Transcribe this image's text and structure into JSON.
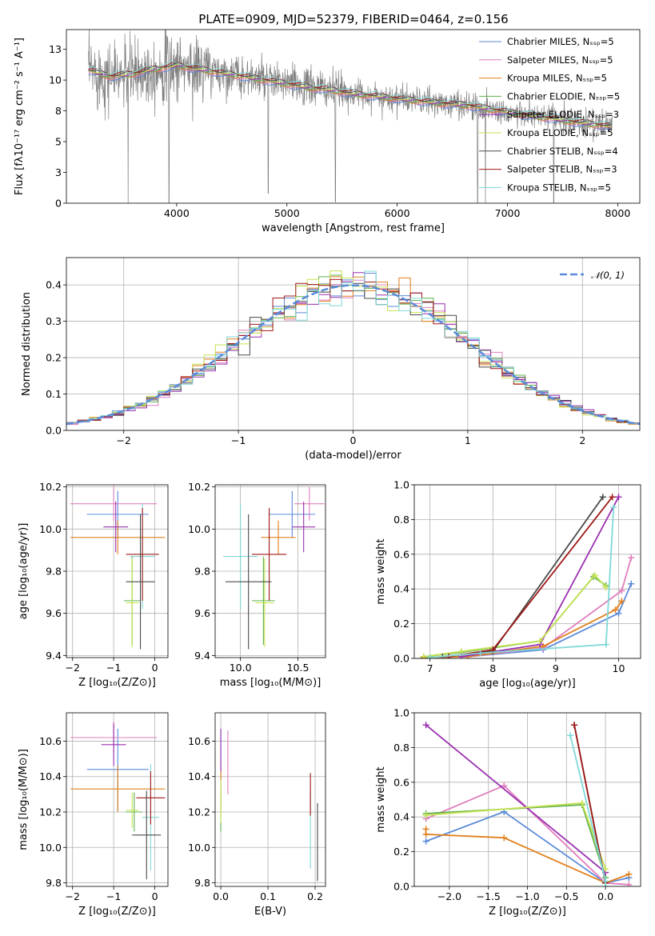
{
  "figure": {
    "title": "PLATE=0909, MJD=52379, FIBERID=0464, z=0.156"
  },
  "chart_data": [
    {
      "id": "spectrum",
      "type": "line",
      "title": "PLATE=0909, MJD=52379, FIBERID=0464, z=0.156",
      "xlabel": "wavelength [Angstrom, rest frame]",
      "ylabel": "Flux [fλ10⁻¹⁷ erg cm⁻² s⁻¹ A⁻¹]",
      "xlim": [
        3000,
        8200
      ],
      "ylim": [
        0,
        14.1
      ],
      "xticks": [
        4000,
        5000,
        6000,
        7000,
        8000
      ],
      "yticks": [
        0.0,
        2.5,
        5.0,
        7.5,
        10.0,
        12.5
      ],
      "grid": false,
      "legend": "upper-right",
      "data_color": "#808080",
      "continuum": [
        [
          3200,
          10.8
        ],
        [
          3400,
          10.3
        ],
        [
          3600,
          10.5
        ],
        [
          3800,
          10.9
        ],
        [
          4000,
          11.2
        ],
        [
          4200,
          10.9
        ],
        [
          4400,
          10.6
        ],
        [
          4600,
          10.3
        ],
        [
          4800,
          10.0
        ],
        [
          5000,
          9.7
        ],
        [
          5200,
          9.4
        ],
        [
          5400,
          9.2
        ],
        [
          5600,
          8.9
        ],
        [
          5800,
          8.7
        ],
        [
          6000,
          8.5
        ],
        [
          6200,
          8.3
        ],
        [
          6400,
          8.1
        ],
        [
          6600,
          8.0
        ],
        [
          6800,
          7.7
        ],
        [
          7000,
          7.4
        ],
        [
          7200,
          7.1
        ],
        [
          7400,
          6.9
        ],
        [
          7600,
          6.6
        ],
        [
          7800,
          6.4
        ],
        [
          7950,
          6.2
        ]
      ],
      "absorption_features": [
        [
          3560,
          0.0
        ],
        [
          3930,
          0.0
        ],
        [
          4830,
          0.8
        ],
        [
          5440,
          0.1
        ],
        [
          6730,
          0.0
        ],
        [
          6800,
          0.0
        ],
        [
          7420,
          0.0
        ]
      ],
      "series": [
        {
          "name": "Chabrier MILES, Nₛₛₚ=5",
          "color": "#5b8ad9"
        },
        {
          "name": "Salpeter MILES, Nₛₛₚ=5",
          "color": "#e07fbd"
        },
        {
          "name": "Kroupa MILES, Nₛₛₚ=5",
          "color": "#e0801c"
        },
        {
          "name": "Chabrier ELODIE, Nₛₛₚ=5",
          "color": "#5fb04d"
        },
        {
          "name": "Salpeter ELODIE, Nₛₛₚ=3",
          "color": "#9a2fb0"
        },
        {
          "name": "Kroupa ELODIE, Nₛₛₚ=5",
          "color": "#c6e352"
        },
        {
          "name": "Chabrier STELIB, Nₛₛₚ=4",
          "color": "#4a4a4a"
        },
        {
          "name": "Salpeter STELIB, Nₛₛₚ=3",
          "color": "#a01818"
        },
        {
          "name": "Kroupa STELIB, Nₛₛₚ=5",
          "color": "#7fd8d8"
        }
      ]
    },
    {
      "id": "residuals",
      "type": "line",
      "xlabel": "(data-model)/error",
      "ylabel": "Normed distribution",
      "xlim": [
        -2.5,
        2.5
      ],
      "ylim": [
        0,
        0.475
      ],
      "xticks": [
        -2,
        -1,
        0,
        1,
        2
      ],
      "yticks": [
        0.0,
        0.1,
        0.2,
        0.3,
        0.4
      ],
      "grid": true,
      "legend": "upper-right",
      "reference": {
        "name": "𝒩(0, 1)",
        "color": "#5b8ad9",
        "mu": 0,
        "sigma": 1
      },
      "histograms": [
        {
          "color": "#5b8ad9",
          "shift": 0.0
        },
        {
          "color": "#e07fbd",
          "shift": 0.03
        },
        {
          "color": "#e0801c",
          "shift": -0.02
        },
        {
          "color": "#5fb04d",
          "shift": 0.01
        },
        {
          "color": "#9a2fb0",
          "shift": 0.04
        },
        {
          "color": "#c6e352",
          "shift": -0.03
        },
        {
          "color": "#4a4a4a",
          "shift": 0.02
        },
        {
          "color": "#a01818",
          "shift": -0.01
        },
        {
          "color": "#7fd8d8",
          "shift": 0.0
        }
      ]
    },
    {
      "id": "age-vs-z",
      "type": "scatter",
      "xlabel": "Z [log₁₀(Z/Z⊙)]",
      "ylabel": "age  [log₁₀(age/yr)]",
      "xlim": [
        -2.15,
        0.32
      ],
      "ylim": [
        9.39,
        10.21
      ],
      "xticks": [
        -2,
        -1,
        0
      ],
      "yticks": [
        9.4,
        9.6,
        9.8,
        10.0,
        10.2
      ],
      "grid": true,
      "points": [
        {
          "color": "#5b8ad9",
          "x": -0.9,
          "xerr": 0.75,
          "y": 10.07,
          "yerr": 0.11
        },
        {
          "color": "#e07fbd",
          "x": -1.0,
          "xerr": 1.05,
          "y": 10.12,
          "yerr": 0.08
        },
        {
          "color": "#e0801c",
          "x": -0.9,
          "xerr": 1.15,
          "y": 9.96,
          "yerr": 0.08
        },
        {
          "color": "#9a2fb0",
          "x": -0.95,
          "xerr": 0.3,
          "y": 10.01,
          "yerr": 0.12
        },
        {
          "color": "#5fb04d",
          "x": -0.55,
          "xerr": 0.2,
          "y": 9.66,
          "yerr": 0.21
        },
        {
          "color": "#c6e352",
          "x": -0.55,
          "xerr": 0.15,
          "y": 9.65,
          "yerr": 0.21
        },
        {
          "color": "#7fd8d8",
          "x": -0.3,
          "xerr": 0.3,
          "y": 9.87,
          "yerr": 0.25
        },
        {
          "color": "#a01818",
          "x": -0.3,
          "xerr": 0.4,
          "y": 9.88,
          "yerr": 0.22
        },
        {
          "color": "#4a4a4a",
          "x": -0.35,
          "xerr": 0.35,
          "y": 9.75,
          "yerr": 0.32
        }
      ]
    },
    {
      "id": "age-vs-mass",
      "type": "scatter",
      "xlabel": "mass [log₁₀(M/M⊙)]",
      "ylabel": "",
      "xlim": [
        9.78,
        10.74
      ],
      "ylim": [
        9.39,
        10.21
      ],
      "xticks": [
        10.0,
        10.5
      ],
      "yticks": [
        9.4,
        9.6,
        9.8,
        10.0,
        10.2
      ],
      "grid": true,
      "points": [
        {
          "color": "#5b8ad9",
          "x": 10.45,
          "xerr": 0.2,
          "y": 10.07,
          "yerr": 0.11
        },
        {
          "color": "#e07fbd",
          "x": 10.6,
          "xerr": 0.13,
          "y": 10.12,
          "yerr": 0.08
        },
        {
          "color": "#e0801c",
          "x": 10.33,
          "xerr": 0.15,
          "y": 9.96,
          "yerr": 0.08
        },
        {
          "color": "#9a2fb0",
          "x": 10.55,
          "xerr": 0.1,
          "y": 10.01,
          "yerr": 0.12
        },
        {
          "color": "#5fb04d",
          "x": 10.2,
          "xerr": 0.1,
          "y": 9.66,
          "yerr": 0.21
        },
        {
          "color": "#c6e352",
          "x": 10.21,
          "xerr": 0.08,
          "y": 9.65,
          "yerr": 0.21
        },
        {
          "color": "#7fd8d8",
          "x": 10.0,
          "xerr": 0.15,
          "y": 9.87,
          "yerr": 0.25
        },
        {
          "color": "#a01818",
          "x": 10.25,
          "xerr": 0.15,
          "y": 9.88,
          "yerr": 0.22
        },
        {
          "color": "#4a4a4a",
          "x": 10.07,
          "xerr": 0.2,
          "y": 9.75,
          "yerr": 0.32
        }
      ]
    },
    {
      "id": "mass-weight-vs-age",
      "type": "line",
      "xlabel": "age  [log₁₀(age/yr)]",
      "ylabel": "mass weight",
      "xlim": [
        6.75,
        10.35
      ],
      "ylim": [
        0,
        1.0
      ],
      "xticks": [
        7,
        8,
        9,
        10
      ],
      "yticks": [
        0.0,
        0.2,
        0.4,
        0.6,
        0.8,
        1.0
      ],
      "grid": true,
      "series": [
        {
          "color": "#5b8ad9",
          "x": [
            6.9,
            7.6,
            8.8,
            10.0,
            10.2
          ],
          "y": [
            0.005,
            0.01,
            0.05,
            0.26,
            0.43
          ]
        },
        {
          "color": "#e07fbd",
          "x": [
            6.9,
            7.6,
            8.8,
            10.05,
            10.2
          ],
          "y": [
            0.005,
            0.01,
            0.06,
            0.39,
            0.58
          ]
        },
        {
          "color": "#e0801c",
          "x": [
            6.9,
            7.6,
            8.8,
            9.95,
            10.05
          ],
          "y": [
            0.005,
            0.01,
            0.07,
            0.28,
            0.33
          ]
        },
        {
          "color": "#5fb04d",
          "x": [
            6.9,
            7.5,
            8.75,
            9.6,
            9.8
          ],
          "y": [
            0.01,
            0.035,
            0.1,
            0.47,
            0.42
          ]
        },
        {
          "color": "#9a2fb0",
          "x": [
            7.5,
            8.75,
            10.0
          ],
          "y": [
            0.01,
            0.08,
            0.93
          ]
        },
        {
          "color": "#c6e352",
          "x": [
            6.9,
            7.5,
            8.75,
            9.62,
            9.8
          ],
          "y": [
            0.01,
            0.04,
            0.1,
            0.48,
            0.41
          ]
        },
        {
          "color": "#4a4a4a",
          "x": [
            7.2,
            8.0,
            9.75
          ],
          "y": [
            0.01,
            0.04,
            0.93
          ]
        },
        {
          "color": "#a01818",
          "x": [
            7.3,
            8.0,
            9.9
          ],
          "y": [
            0.01,
            0.05,
            0.93
          ]
        },
        {
          "color": "#7fd8d8",
          "x": [
            7.0,
            7.8,
            9.8,
            9.92
          ],
          "y": [
            0.005,
            0.03,
            0.08,
            0.87
          ]
        }
      ]
    },
    {
      "id": "mass-vs-z",
      "type": "scatter",
      "xlabel": "Z [log₁₀(Z/Z⊙)]",
      "ylabel": "mass [log₁₀(M/M⊙)]",
      "xlim": [
        -2.15,
        0.32
      ],
      "ylim": [
        9.78,
        10.76
      ],
      "xticks": [
        -2,
        -1,
        0
      ],
      "yticks": [
        9.8,
        10.0,
        10.2,
        10.4,
        10.6
      ],
      "grid": true,
      "points": [
        {
          "color": "#5b8ad9",
          "x": -0.9,
          "xerr": 0.75,
          "y": 10.44,
          "yerr": 0.23
        },
        {
          "color": "#e07fbd",
          "x": -1.0,
          "xerr": 1.05,
          "y": 10.62,
          "yerr": 0.09
        },
        {
          "color": "#e0801c",
          "x": -0.9,
          "xerr": 1.15,
          "y": 10.33,
          "yerr": 0.13
        },
        {
          "color": "#9a2fb0",
          "x": -1.0,
          "xerr": 0.3,
          "y": 10.58,
          "yerr": 0.12
        },
        {
          "color": "#5fb04d",
          "x": -0.5,
          "xerr": 0.2,
          "y": 10.2,
          "yerr": 0.11
        },
        {
          "color": "#c6e352",
          "x": -0.55,
          "xerr": 0.15,
          "y": 10.21,
          "yerr": 0.1
        },
        {
          "color": "#7fd8d8",
          "x": -0.1,
          "xerr": 0.2,
          "y": 10.17,
          "yerr": 0.3
        },
        {
          "color": "#a01818",
          "x": -0.1,
          "xerr": 0.35,
          "y": 10.28,
          "yerr": 0.15
        },
        {
          "color": "#4a4a4a",
          "x": -0.2,
          "xerr": 0.35,
          "y": 10.07,
          "yerr": 0.25
        }
      ]
    },
    {
      "id": "mass-vs-ebv",
      "type": "scatter",
      "xlabel": "E(B-V)",
      "ylabel": "",
      "xlim": [
        -0.012,
        0.222
      ],
      "ylim": [
        9.78,
        10.76
      ],
      "xticks": [
        0.0,
        0.1,
        0.2
      ],
      "yticks": [
        9.8,
        10.0,
        10.2,
        10.4,
        10.6
      ],
      "grid": true,
      "points": [
        {
          "color": "#5b8ad9",
          "x": 0.0,
          "xerr": 0.0,
          "y": 10.44,
          "yerr": 0.23
        },
        {
          "color": "#e07fbd",
          "x": 0.015,
          "xerr": 0.0,
          "y": 10.48,
          "yerr": 0.18
        },
        {
          "color": "#e0801c",
          "x": 0.0,
          "xerr": 0.0,
          "y": 10.33,
          "yerr": 0.13
        },
        {
          "color": "#9a2fb0",
          "x": 0.0,
          "xerr": 0.0,
          "y": 10.55,
          "yerr": 0.12
        },
        {
          "color": "#5fb04d",
          "x": 0.0,
          "xerr": 0.0,
          "y": 10.2,
          "yerr": 0.11
        },
        {
          "color": "#c6e352",
          "x": 0.0,
          "xerr": 0.0,
          "y": 10.26,
          "yerr": 0.12
        },
        {
          "color": "#7fd8d8",
          "x": 0.19,
          "xerr": 0.0,
          "y": 10.1,
          "yerr": 0.22
        },
        {
          "color": "#a01818",
          "x": 0.19,
          "xerr": 0.0,
          "y": 10.3,
          "yerr": 0.12
        },
        {
          "color": "#4a4a4a",
          "x": 0.205,
          "xerr": 0.0,
          "y": 10.03,
          "yerr": 0.22
        }
      ]
    },
    {
      "id": "mass-weight-vs-z",
      "type": "line",
      "xlabel": "Z [log₁₀(Z/Z⊙)]",
      "ylabel": "mass weight",
      "xlim": [
        -2.45,
        0.45
      ],
      "ylim": [
        0,
        1.0
      ],
      "xticks": [
        -2.0,
        -1.5,
        -1.0,
        -0.5,
        0.0
      ],
      "yticks": [
        0.0,
        0.2,
        0.4,
        0.6,
        0.8,
        1.0
      ],
      "grid": true,
      "series": [
        {
          "color": "#5b8ad9",
          "x": [
            -2.3,
            -1.3,
            0.0,
            0.3
          ],
          "y": [
            0.26,
            0.43,
            0.02,
            0.05
          ]
        },
        {
          "color": "#e07fbd",
          "x": [
            -2.3,
            -1.3,
            0.0,
            0.3
          ],
          "y": [
            0.39,
            0.58,
            0.02,
            0.01
          ]
        },
        {
          "color": "#e0801c",
          "x": [
            -2.3,
            -2.3,
            -1.3,
            0.0,
            0.3
          ],
          "y": [
            0.33,
            0.3,
            0.28,
            0.02,
            0.07
          ]
        },
        {
          "color": "#5fb04d",
          "x": [
            -2.3,
            -0.3,
            0.0
          ],
          "y": [
            0.42,
            0.47,
            0.05
          ]
        },
        {
          "color": "#9a2fb0",
          "x": [
            -2.3,
            0.0
          ],
          "y": [
            0.93,
            0.08
          ]
        },
        {
          "color": "#c6e352",
          "x": [
            -2.3,
            -0.3,
            0.0
          ],
          "y": [
            0.41,
            0.48,
            0.1
          ]
        },
        {
          "color": "#4a4a4a",
          "x": [
            -0.4,
            0.0
          ],
          "y": [
            0.93,
            0.02
          ]
        },
        {
          "color": "#a01818",
          "x": [
            -0.4,
            0.0
          ],
          "y": [
            0.93,
            0.02
          ]
        },
        {
          "color": "#7fd8d8",
          "x": [
            -0.45,
            0.0,
            0.0
          ],
          "y": [
            0.87,
            0.03,
            0.0
          ]
        }
      ]
    }
  ]
}
